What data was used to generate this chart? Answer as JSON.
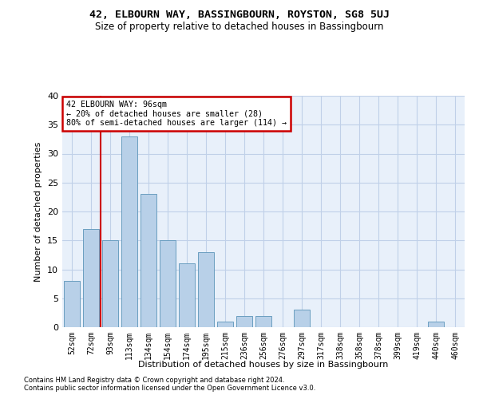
{
  "title": "42, ELBOURN WAY, BASSINGBOURN, ROYSTON, SG8 5UJ",
  "subtitle": "Size of property relative to detached houses in Bassingbourn",
  "xlabel": "Distribution of detached houses by size in Bassingbourn",
  "ylabel": "Number of detached properties",
  "categories": [
    "52sqm",
    "72sqm",
    "93sqm",
    "113sqm",
    "134sqm",
    "154sqm",
    "174sqm",
    "195sqm",
    "215sqm",
    "236sqm",
    "256sqm",
    "276sqm",
    "297sqm",
    "317sqm",
    "338sqm",
    "358sqm",
    "378sqm",
    "399sqm",
    "419sqm",
    "440sqm",
    "460sqm"
  ],
  "values": [
    8,
    17,
    15,
    33,
    23,
    15,
    11,
    13,
    1,
    2,
    2,
    0,
    3,
    0,
    0,
    0,
    0,
    0,
    0,
    1,
    0
  ],
  "bar_color": "#b8d0e8",
  "bar_edge_color": "#6a9ec0",
  "vline_x_index": 2,
  "marker_label": "42 ELBOURN WAY: 96sqm",
  "annotation_line1": "← 20% of detached houses are smaller (28)",
  "annotation_line2": "80% of semi-detached houses are larger (114) →",
  "annotation_box_color": "white",
  "annotation_box_edge_color": "#cc0000",
  "vline_color": "#cc0000",
  "ylim": [
    0,
    40
  ],
  "yticks": [
    0,
    5,
    10,
    15,
    20,
    25,
    30,
    35,
    40
  ],
  "footnote1": "Contains HM Land Registry data © Crown copyright and database right 2024.",
  "footnote2": "Contains public sector information licensed under the Open Government Licence v3.0.",
  "bg_color": "#e8f0fa",
  "grid_color": "#c0d0e8"
}
